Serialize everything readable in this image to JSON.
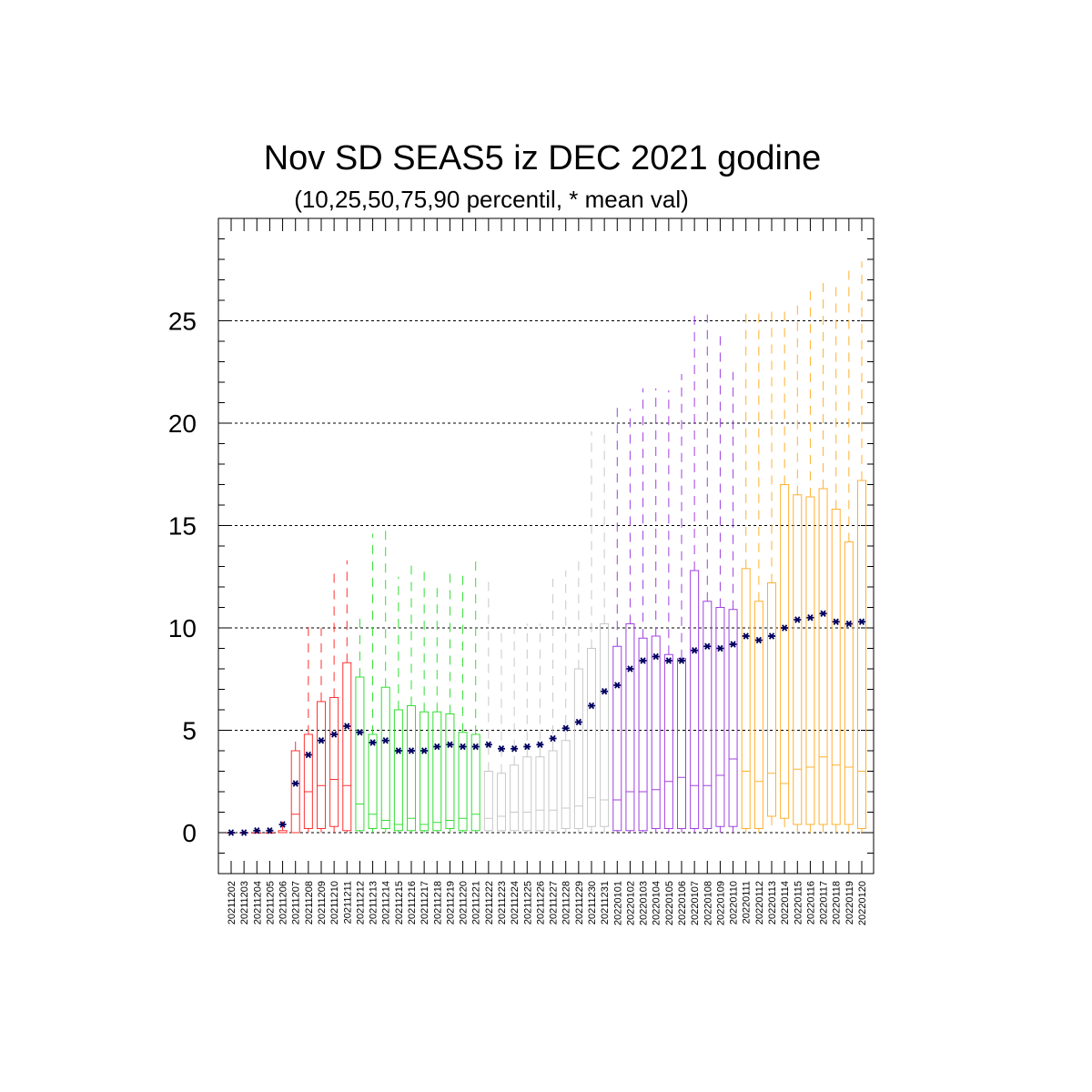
{
  "chart_data": {
    "type": "boxplot",
    "title": "Nov SD SEAS5 iz DEC 2021 godine",
    "subtitle": "(10,25,50,75,90 percentil, * mean val)",
    "ylim": [
      -2,
      30
    ],
    "yticks": [
      0,
      5,
      10,
      15,
      20,
      25
    ],
    "grid": "horizontal dashed at major ticks",
    "colors": {
      "red": "#ff3030",
      "green": "#33dd33",
      "gray": "#c8c8c8",
      "purple": "#a040e0",
      "orange": "#ffb030",
      "mean_marker": "#000060",
      "grid": "#000000"
    },
    "series": [
      {
        "date": "20211202",
        "color": "red",
        "p10": 0,
        "p25": 0,
        "p50": 0,
        "p75": 0,
        "p90": 0,
        "mean": 0
      },
      {
        "date": "20211203",
        "color": "red",
        "p10": 0,
        "p25": 0,
        "p50": 0,
        "p75": 0,
        "p90": 0,
        "mean": 0
      },
      {
        "date": "20211204",
        "color": "red",
        "p10": 0,
        "p25": 0,
        "p50": 0,
        "p75": 0,
        "p90": 0.1,
        "mean": 0.1
      },
      {
        "date": "20211205",
        "color": "red",
        "p10": 0,
        "p25": 0,
        "p50": 0,
        "p75": 0,
        "p90": 0.2,
        "mean": 0.1
      },
      {
        "date": "20211206",
        "color": "red",
        "p10": 0,
        "p25": 0,
        "p50": 0,
        "p75": 0.1,
        "p90": 0.8,
        "mean": 0.4
      },
      {
        "date": "20211207",
        "color": "red",
        "p10": 0,
        "p25": 0,
        "p50": 0.9,
        "p75": 4.0,
        "p90": 4.6,
        "mean": 2.4
      },
      {
        "date": "20211208",
        "color": "red",
        "p10": 0,
        "p25": 0.2,
        "p50": 2.0,
        "p75": 4.8,
        "p90": 10.2,
        "mean": 3.8
      },
      {
        "date": "20211209",
        "color": "red",
        "p10": 0,
        "p25": 0.2,
        "p50": 2.3,
        "p75": 6.4,
        "p90": 10.0,
        "mean": 4.5
      },
      {
        "date": "20211210",
        "color": "red",
        "p10": 0,
        "p25": 0.3,
        "p50": 2.6,
        "p75": 6.6,
        "p90": 12.8,
        "mean": 4.8
      },
      {
        "date": "20211211",
        "color": "red",
        "p10": 0,
        "p25": 0.1,
        "p50": 2.3,
        "p75": 8.3,
        "p90": 13.3,
        "mean": 5.2
      },
      {
        "date": "20211212",
        "color": "green",
        "p10": 0,
        "p25": 0.1,
        "p50": 1.4,
        "p75": 7.6,
        "p90": 10.6,
        "mean": 4.9
      },
      {
        "date": "20211213",
        "color": "green",
        "p10": 0,
        "p25": 0.2,
        "p50": 0.9,
        "p75": 4.8,
        "p90": 14.6,
        "mean": 4.4
      },
      {
        "date": "20211214",
        "color": "green",
        "p10": 0,
        "p25": 0.2,
        "p50": 0.6,
        "p75": 7.1,
        "p90": 14.8,
        "mean": 4.5
      },
      {
        "date": "20211215",
        "color": "green",
        "p10": 0,
        "p25": 0.1,
        "p50": 0.4,
        "p75": 6.0,
        "p90": 12.5,
        "mean": 4.0
      },
      {
        "date": "20211216",
        "color": "green",
        "p10": 0,
        "p25": 0.1,
        "p50": 0.7,
        "p75": 6.2,
        "p90": 13.2,
        "mean": 4.0
      },
      {
        "date": "20211217",
        "color": "green",
        "p10": 0,
        "p25": 0.1,
        "p50": 0.4,
        "p75": 5.9,
        "p90": 13.1,
        "mean": 4.0
      },
      {
        "date": "20211218",
        "color": "green",
        "p10": 0,
        "p25": 0.1,
        "p50": 0.5,
        "p75": 5.9,
        "p90": 12.3,
        "mean": 4.2
      },
      {
        "date": "20211219",
        "color": "green",
        "p10": 0,
        "p25": 0.2,
        "p50": 0.6,
        "p75": 5.8,
        "p90": 12.7,
        "mean": 4.3
      },
      {
        "date": "20211220",
        "color": "green",
        "p10": 0,
        "p25": 0.1,
        "p50": 0.7,
        "p75": 4.9,
        "p90": 12.9,
        "mean": 4.2
      },
      {
        "date": "20211221",
        "color": "green",
        "p10": 0,
        "p25": 0.1,
        "p50": 0.9,
        "p75": 4.8,
        "p90": 13.3,
        "mean": 4.2
      },
      {
        "date": "20211222",
        "color": "gray",
        "p10": 0,
        "p25": 0.1,
        "p50": 0.7,
        "p75": 3.0,
        "p90": 12.5,
        "mean": 4.3
      },
      {
        "date": "20211223",
        "color": "gray",
        "p10": 0,
        "p25": 0.1,
        "p50": 0.8,
        "p75": 2.9,
        "p90": 10.0,
        "mean": 4.1
      },
      {
        "date": "20211224",
        "color": "gray",
        "p10": 0,
        "p25": 0.1,
        "p50": 1.0,
        "p75": 3.3,
        "p90": 10.0,
        "mean": 4.1
      },
      {
        "date": "20211225",
        "color": "gray",
        "p10": 0,
        "p25": 0.1,
        "p50": 1.0,
        "p75": 3.7,
        "p90": 10.2,
        "mean": 4.2
      },
      {
        "date": "20211226",
        "color": "gray",
        "p10": 0,
        "p25": 0.1,
        "p50": 1.1,
        "p75": 3.7,
        "p90": 10.2,
        "mean": 4.3
      },
      {
        "date": "20211227",
        "color": "gray",
        "p10": 0,
        "p25": 0.1,
        "p50": 1.1,
        "p75": 4.0,
        "p90": 12.4,
        "mean": 4.6
      },
      {
        "date": "20211228",
        "color": "gray",
        "p10": 0,
        "p25": 0.2,
        "p50": 1.2,
        "p75": 4.5,
        "p90": 12.8,
        "mean": 5.1
      },
      {
        "date": "20211229",
        "color": "gray",
        "p10": 0,
        "p25": 0.2,
        "p50": 1.3,
        "p75": 8.0,
        "p90": 13.4,
        "mean": 5.4
      },
      {
        "date": "20211230",
        "color": "gray",
        "p10": 0,
        "p25": 0.3,
        "p50": 1.7,
        "p75": 9.0,
        "p90": 19.6,
        "mean": 6.2
      },
      {
        "date": "20211231",
        "color": "gray",
        "p10": 0,
        "p25": 0.3,
        "p50": 1.6,
        "p75": 10.2,
        "p90": 19.8,
        "mean": 6.9
      },
      {
        "date": "20220101",
        "color": "purple",
        "p10": 0,
        "p25": 0.1,
        "p50": 1.6,
        "p75": 9.1,
        "p90": 20.8,
        "mean": 7.2
      },
      {
        "date": "20220102",
        "color": "purple",
        "p10": 0,
        "p25": 0.1,
        "p50": 2.0,
        "p75": 10.2,
        "p90": 20.7,
        "mean": 8.0
      },
      {
        "date": "20220103",
        "color": "purple",
        "p10": 0,
        "p25": 0.1,
        "p50": 2.0,
        "p75": 9.5,
        "p90": 21.7,
        "mean": 8.4
      },
      {
        "date": "20220104",
        "color": "purple",
        "p10": 0,
        "p25": 0.2,
        "p50": 2.1,
        "p75": 9.6,
        "p90": 21.7,
        "mean": 8.6
      },
      {
        "date": "20220105",
        "color": "purple",
        "p10": 0,
        "p25": 0.2,
        "p50": 2.5,
        "p75": 8.7,
        "p90": 21.6,
        "mean": 8.4
      },
      {
        "date": "20220106",
        "color": "purple",
        "p10": 0,
        "p25": 0.2,
        "p50": 2.7,
        "p75": 8.5,
        "p90": 22.4,
        "mean": 8.4
      },
      {
        "date": "20220107",
        "color": "purple",
        "p10": 0,
        "p25": 0.2,
        "p50": 2.3,
        "p75": 12.8,
        "p90": 25.6,
        "mean": 8.9
      },
      {
        "date": "20220108",
        "color": "purple",
        "p10": 0,
        "p25": 0.2,
        "p50": 2.3,
        "p75": 11.3,
        "p90": 25.3,
        "mean": 9.1
      },
      {
        "date": "20220109",
        "color": "purple",
        "p10": 0,
        "p25": 0.3,
        "p50": 2.8,
        "p75": 11.0,
        "p90": 24.5,
        "mean": 9.0
      },
      {
        "date": "20220110",
        "color": "purple",
        "p10": 0,
        "p25": 0.3,
        "p50": 3.6,
        "p75": 10.9,
        "p90": 22.5,
        "mean": 9.2
      },
      {
        "date": "20220111",
        "color": "orange",
        "p10": 0,
        "p25": 0.2,
        "p50": 3.0,
        "p75": 12.9,
        "p90": 25.7,
        "mean": 9.6
      },
      {
        "date": "20220112",
        "color": "orange",
        "p10": 0,
        "p25": 0.2,
        "p50": 2.5,
        "p75": 11.3,
        "p90": 25.6,
        "mean": 9.4
      },
      {
        "date": "20220113",
        "color": "orange",
        "p10": 0,
        "p25": 0.8,
        "p50": 2.9,
        "p75": 12.2,
        "p90": 25.5,
        "mean": 9.6
      },
      {
        "date": "20220114",
        "color": "orange",
        "p10": 0,
        "p25": 0.7,
        "p50": 2.4,
        "p75": 17.0,
        "p90": 25.7,
        "mean": 10.0
      },
      {
        "date": "20220115",
        "color": "orange",
        "p10": 0,
        "p25": 0.4,
        "p50": 3.1,
        "p75": 16.5,
        "p90": 26.1,
        "mean": 10.4
      },
      {
        "date": "20220116",
        "color": "orange",
        "p10": 0,
        "p25": 0.4,
        "p50": 3.2,
        "p75": 16.4,
        "p90": 26.6,
        "mean": 10.5
      },
      {
        "date": "20220117",
        "color": "orange",
        "p10": 0,
        "p25": 0.4,
        "p50": 3.7,
        "p75": 16.8,
        "p90": 26.9,
        "mean": 10.7
      },
      {
        "date": "20220118",
        "color": "orange",
        "p10": 0,
        "p25": 0.4,
        "p50": 3.3,
        "p75": 15.8,
        "p90": 26.7,
        "mean": 10.3
      },
      {
        "date": "20220119",
        "color": "orange",
        "p10": 0,
        "p25": 0.4,
        "p50": 3.2,
        "p75": 14.2,
        "p90": 27.8,
        "mean": 10.2
      },
      {
        "date": "20220120",
        "color": "orange",
        "p10": 0,
        "p25": 0.2,
        "p50": 3.0,
        "p75": 17.2,
        "p90": 27.9,
        "mean": 10.3
      }
    ]
  }
}
